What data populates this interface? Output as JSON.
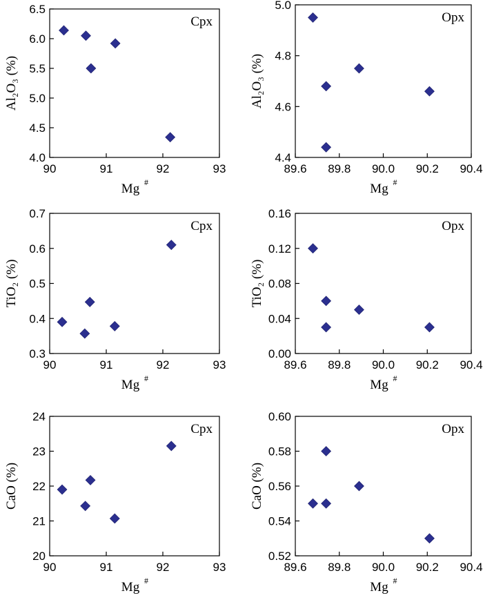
{
  "chart_data": [
    {
      "type": "scatter",
      "panel_label": "Cpx",
      "xlabel": "Mg",
      "xlabel_sup": "#",
      "ylabel": "Al₂O₃ (%)",
      "xlim": [
        90,
        93
      ],
      "ylim": [
        4.0,
        6.5
      ],
      "xticks": [
        "90",
        "91",
        "92",
        "93"
      ],
      "xtick_values": [
        90,
        91,
        92,
        93
      ],
      "yticks": [
        "4.0",
        "4.5",
        "5.0",
        "5.5",
        "6.0",
        "6.5"
      ],
      "ytick_values": [
        4.0,
        4.5,
        5.0,
        5.5,
        6.0,
        6.5
      ],
      "marker_color": "#2b2f8f",
      "points": [
        {
          "x": 90.25,
          "y": 6.14
        },
        {
          "x": 90.64,
          "y": 6.05
        },
        {
          "x": 90.73,
          "y": 5.5
        },
        {
          "x": 91.16,
          "y": 5.92
        },
        {
          "x": 92.13,
          "y": 4.34
        }
      ]
    },
    {
      "type": "scatter",
      "panel_label": "Opx",
      "xlabel": "Mg",
      "xlabel_sup": "#",
      "ylabel": "Al₂O₃ (%)",
      "xlim": [
        89.6,
        90.4
      ],
      "ylim": [
        4.4,
        5.0
      ],
      "xticks": [
        "89.6",
        "89.8",
        "90.0",
        "90.2",
        "90.4"
      ],
      "xtick_values": [
        89.6,
        89.8,
        90.0,
        90.2,
        90.4
      ],
      "yticks": [
        "4.4",
        "4.6",
        "4.8",
        "5.0"
      ],
      "ytick_values": [
        4.4,
        4.6,
        4.8,
        5.0
      ],
      "marker_color": "#2b2f8f",
      "points": [
        {
          "x": 89.68,
          "y": 4.95
        },
        {
          "x": 89.74,
          "y": 4.68
        },
        {
          "x": 89.74,
          "y": 4.44
        },
        {
          "x": 89.89,
          "y": 4.75
        },
        {
          "x": 90.21,
          "y": 4.66
        }
      ]
    },
    {
      "type": "scatter",
      "panel_label": "Cpx",
      "xlabel": "Mg",
      "xlabel_sup": "#",
      "ylabel": "TiO₂ (%)",
      "xlim": [
        90,
        93
      ],
      "ylim": [
        0.3,
        0.7
      ],
      "xticks": [
        "90",
        "91",
        "92",
        "93"
      ],
      "xtick_values": [
        90,
        91,
        92,
        93
      ],
      "yticks": [
        "0.3",
        "0.4",
        "0.5",
        "0.6",
        "0.7"
      ],
      "ytick_values": [
        0.3,
        0.4,
        0.5,
        0.6,
        0.7
      ],
      "marker_color": "#2b2f8f",
      "points": [
        {
          "x": 90.22,
          "y": 0.39
        },
        {
          "x": 90.62,
          "y": 0.357
        },
        {
          "x": 90.71,
          "y": 0.447
        },
        {
          "x": 91.15,
          "y": 0.378
        },
        {
          "x": 92.15,
          "y": 0.61
        }
      ]
    },
    {
      "type": "scatter",
      "panel_label": "Opx",
      "xlabel": "Mg",
      "xlabel_sup": "#",
      "ylabel": "TiO₂ (%)",
      "xlim": [
        89.6,
        90.4
      ],
      "ylim": [
        0.0,
        0.16
      ],
      "xticks": [
        "89.6",
        "89.8",
        "90.0",
        "90.2",
        "90.4"
      ],
      "xtick_values": [
        89.6,
        89.8,
        90.0,
        90.2,
        90.4
      ],
      "yticks": [
        "0.00",
        "0.04",
        "0.08",
        "0.12",
        "0.16"
      ],
      "ytick_values": [
        0.0,
        0.04,
        0.08,
        0.12,
        0.16
      ],
      "marker_color": "#2b2f8f",
      "points": [
        {
          "x": 89.68,
          "y": 0.12
        },
        {
          "x": 89.74,
          "y": 0.06
        },
        {
          "x": 89.74,
          "y": 0.03
        },
        {
          "x": 89.89,
          "y": 0.05
        },
        {
          "x": 90.21,
          "y": 0.03
        }
      ]
    },
    {
      "type": "scatter",
      "panel_label": "Cpx",
      "xlabel": "Mg",
      "xlabel_sup": "#",
      "ylabel": "CaO (%)",
      "xlim": [
        90,
        93
      ],
      "ylim": [
        20,
        24
      ],
      "xticks": [
        "90",
        "91",
        "92",
        "93"
      ],
      "xtick_values": [
        90,
        91,
        92,
        93
      ],
      "yticks": [
        "20",
        "21",
        "22",
        "23",
        "24"
      ],
      "ytick_values": [
        20,
        21,
        22,
        23,
        24
      ],
      "marker_color": "#2b2f8f",
      "points": [
        {
          "x": 90.22,
          "y": 21.9
        },
        {
          "x": 90.63,
          "y": 21.43
        },
        {
          "x": 90.72,
          "y": 22.17
        },
        {
          "x": 91.15,
          "y": 21.07
        },
        {
          "x": 92.15,
          "y": 23.15
        }
      ]
    },
    {
      "type": "scatter",
      "panel_label": "Opx",
      "xlabel": "Mg",
      "xlabel_sup": "#",
      "ylabel": "CaO (%)",
      "xlim": [
        89.6,
        90.4
      ],
      "ylim": [
        0.52,
        0.6
      ],
      "xticks": [
        "89.6",
        "89.8",
        "90.0",
        "90.2",
        "90.4"
      ],
      "xtick_values": [
        89.6,
        89.8,
        90.0,
        90.2,
        90.4
      ],
      "yticks": [
        "0.52",
        "0.54",
        "0.56",
        "0.58",
        "0.60"
      ],
      "ytick_values": [
        0.52,
        0.54,
        0.56,
        0.58,
        0.6
      ],
      "marker_color": "#2b2f8f",
      "points": [
        {
          "x": 89.68,
          "y": 0.55
        },
        {
          "x": 89.74,
          "y": 0.55
        },
        {
          "x": 89.74,
          "y": 0.58
        },
        {
          "x": 89.89,
          "y": 0.56
        },
        {
          "x": 90.21,
          "y": 0.53
        }
      ]
    }
  ]
}
